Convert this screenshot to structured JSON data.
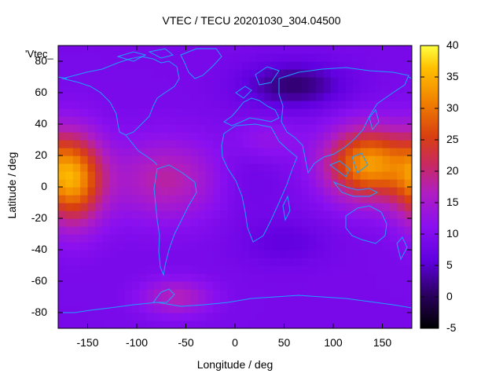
{
  "title": "VTEC / TECU 20201030_304.04500",
  "legend_key": "'Vtec_",
  "chart_data": {
    "type": "heatmap",
    "title": "VTEC / TECU 20201030_304.04500",
    "xlabel": "Longitude / deg",
    "ylabel": "Latitude / deg",
    "xlim": [
      -180,
      180
    ],
    "ylim": [
      -90,
      90
    ],
    "x_ticks": [
      -150,
      -100,
      -50,
      0,
      50,
      100,
      150
    ],
    "y_ticks": [
      -80,
      -60,
      -40,
      -20,
      0,
      20,
      40,
      60,
      80
    ],
    "colorbar": {
      "min": -5,
      "max": 40,
      "ticks": [
        -5,
        0,
        5,
        10,
        15,
        20,
        25,
        30,
        35,
        40
      ]
    },
    "legend": "'Vtec_",
    "colormap_stops": [
      "#000000",
      "#3a0078",
      "#7000ff",
      "#b020c0",
      "#d03030",
      "#f08000",
      "#ffd000",
      "#ffff40"
    ],
    "coastline_color": "#1ea0ff",
    "hotspots": [
      {
        "lon": -165,
        "lat": 5,
        "vtec": 32,
        "sx": 22,
        "sy": 20
      },
      {
        "lon": 135,
        "lat": 15,
        "vtec": 33,
        "sx": 30,
        "sy": 16
      },
      {
        "lon": -70,
        "lat": 5,
        "vtec": 18,
        "sx": 40,
        "sy": 18
      },
      {
        "lon": -60,
        "lat": -70,
        "vtec": 17,
        "sx": 25,
        "sy": 8
      },
      {
        "lon": 30,
        "lat": 30,
        "vtec": 13,
        "sx": 25,
        "sy": 10
      }
    ],
    "background_vtec": 9,
    "depressions": [
      {
        "lon": 60,
        "lat": 65,
        "vtec": 1,
        "sx": 35,
        "sy": 10
      },
      {
        "lon": 50,
        "lat": -35,
        "vtec": 6,
        "sx": 30,
        "sy": 10
      },
      {
        "lon": 10,
        "lat": 10,
        "vtec": 7,
        "sx": 25,
        "sy": 20
      }
    ]
  }
}
